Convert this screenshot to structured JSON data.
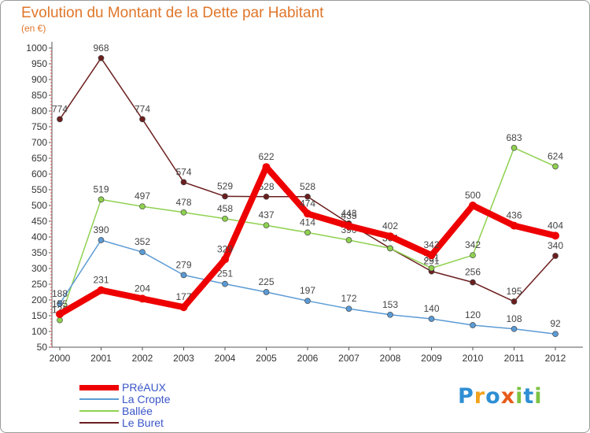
{
  "title": "Evolution du Montant de la Dette par Habitant",
  "subtitle": "(en €)",
  "logo": {
    "letters": [
      "P",
      "r",
      "o",
      "x",
      "i",
      "t",
      "i"
    ],
    "colors": [
      "#2e8fd4",
      "#f2a21c",
      "#2e8fd4",
      "#e85b1a",
      "#7cc242",
      "#2e8fd4",
      "#7cc242"
    ]
  },
  "chart_data": {
    "type": "line",
    "title": "Evolution du Montant de la Dette par Habitant",
    "subtitle": "(en €)",
    "x": [
      "2000",
      "2001",
      "2002",
      "2003",
      "2004",
      "2005",
      "2006",
      "2007",
      "2008",
      "2009",
      "2010",
      "2011",
      "2012"
    ],
    "ylim": [
      50,
      1000
    ],
    "yticks": [
      "50",
      "100",
      "150",
      "200",
      "250",
      "300",
      "350",
      "400",
      "450",
      "500",
      "550",
      "600",
      "650",
      "700",
      "750",
      "800",
      "850",
      "900",
      "950",
      "1000"
    ],
    "grid": false,
    "legend_position": "bottom-left",
    "series": [
      {
        "name": "Le Buret",
        "color": "#6b1e1e",
        "values": [
          774,
          968,
          774,
          574,
          529,
          528,
          528,
          443,
          364,
          291,
          256,
          195,
          340
        ]
      },
      {
        "name": "Ballée",
        "color": "#8fd14f",
        "values": [
          136,
          519,
          497,
          478,
          458,
          437,
          414,
          390,
          364,
          301,
          342,
          683,
          624
        ]
      },
      {
        "name": "La Cropte",
        "color": "#5b9bd5",
        "values": [
          188,
          390,
          352,
          279,
          251,
          225,
          197,
          172,
          153,
          140,
          120,
          108,
          92
        ]
      },
      {
        "name": "PRéAUX",
        "color": "#ee0000",
        "values": [
          155,
          231,
          204,
          177,
          329,
          622,
          474,
          435,
          402,
          342,
          500,
          436,
          404
        ]
      }
    ]
  }
}
